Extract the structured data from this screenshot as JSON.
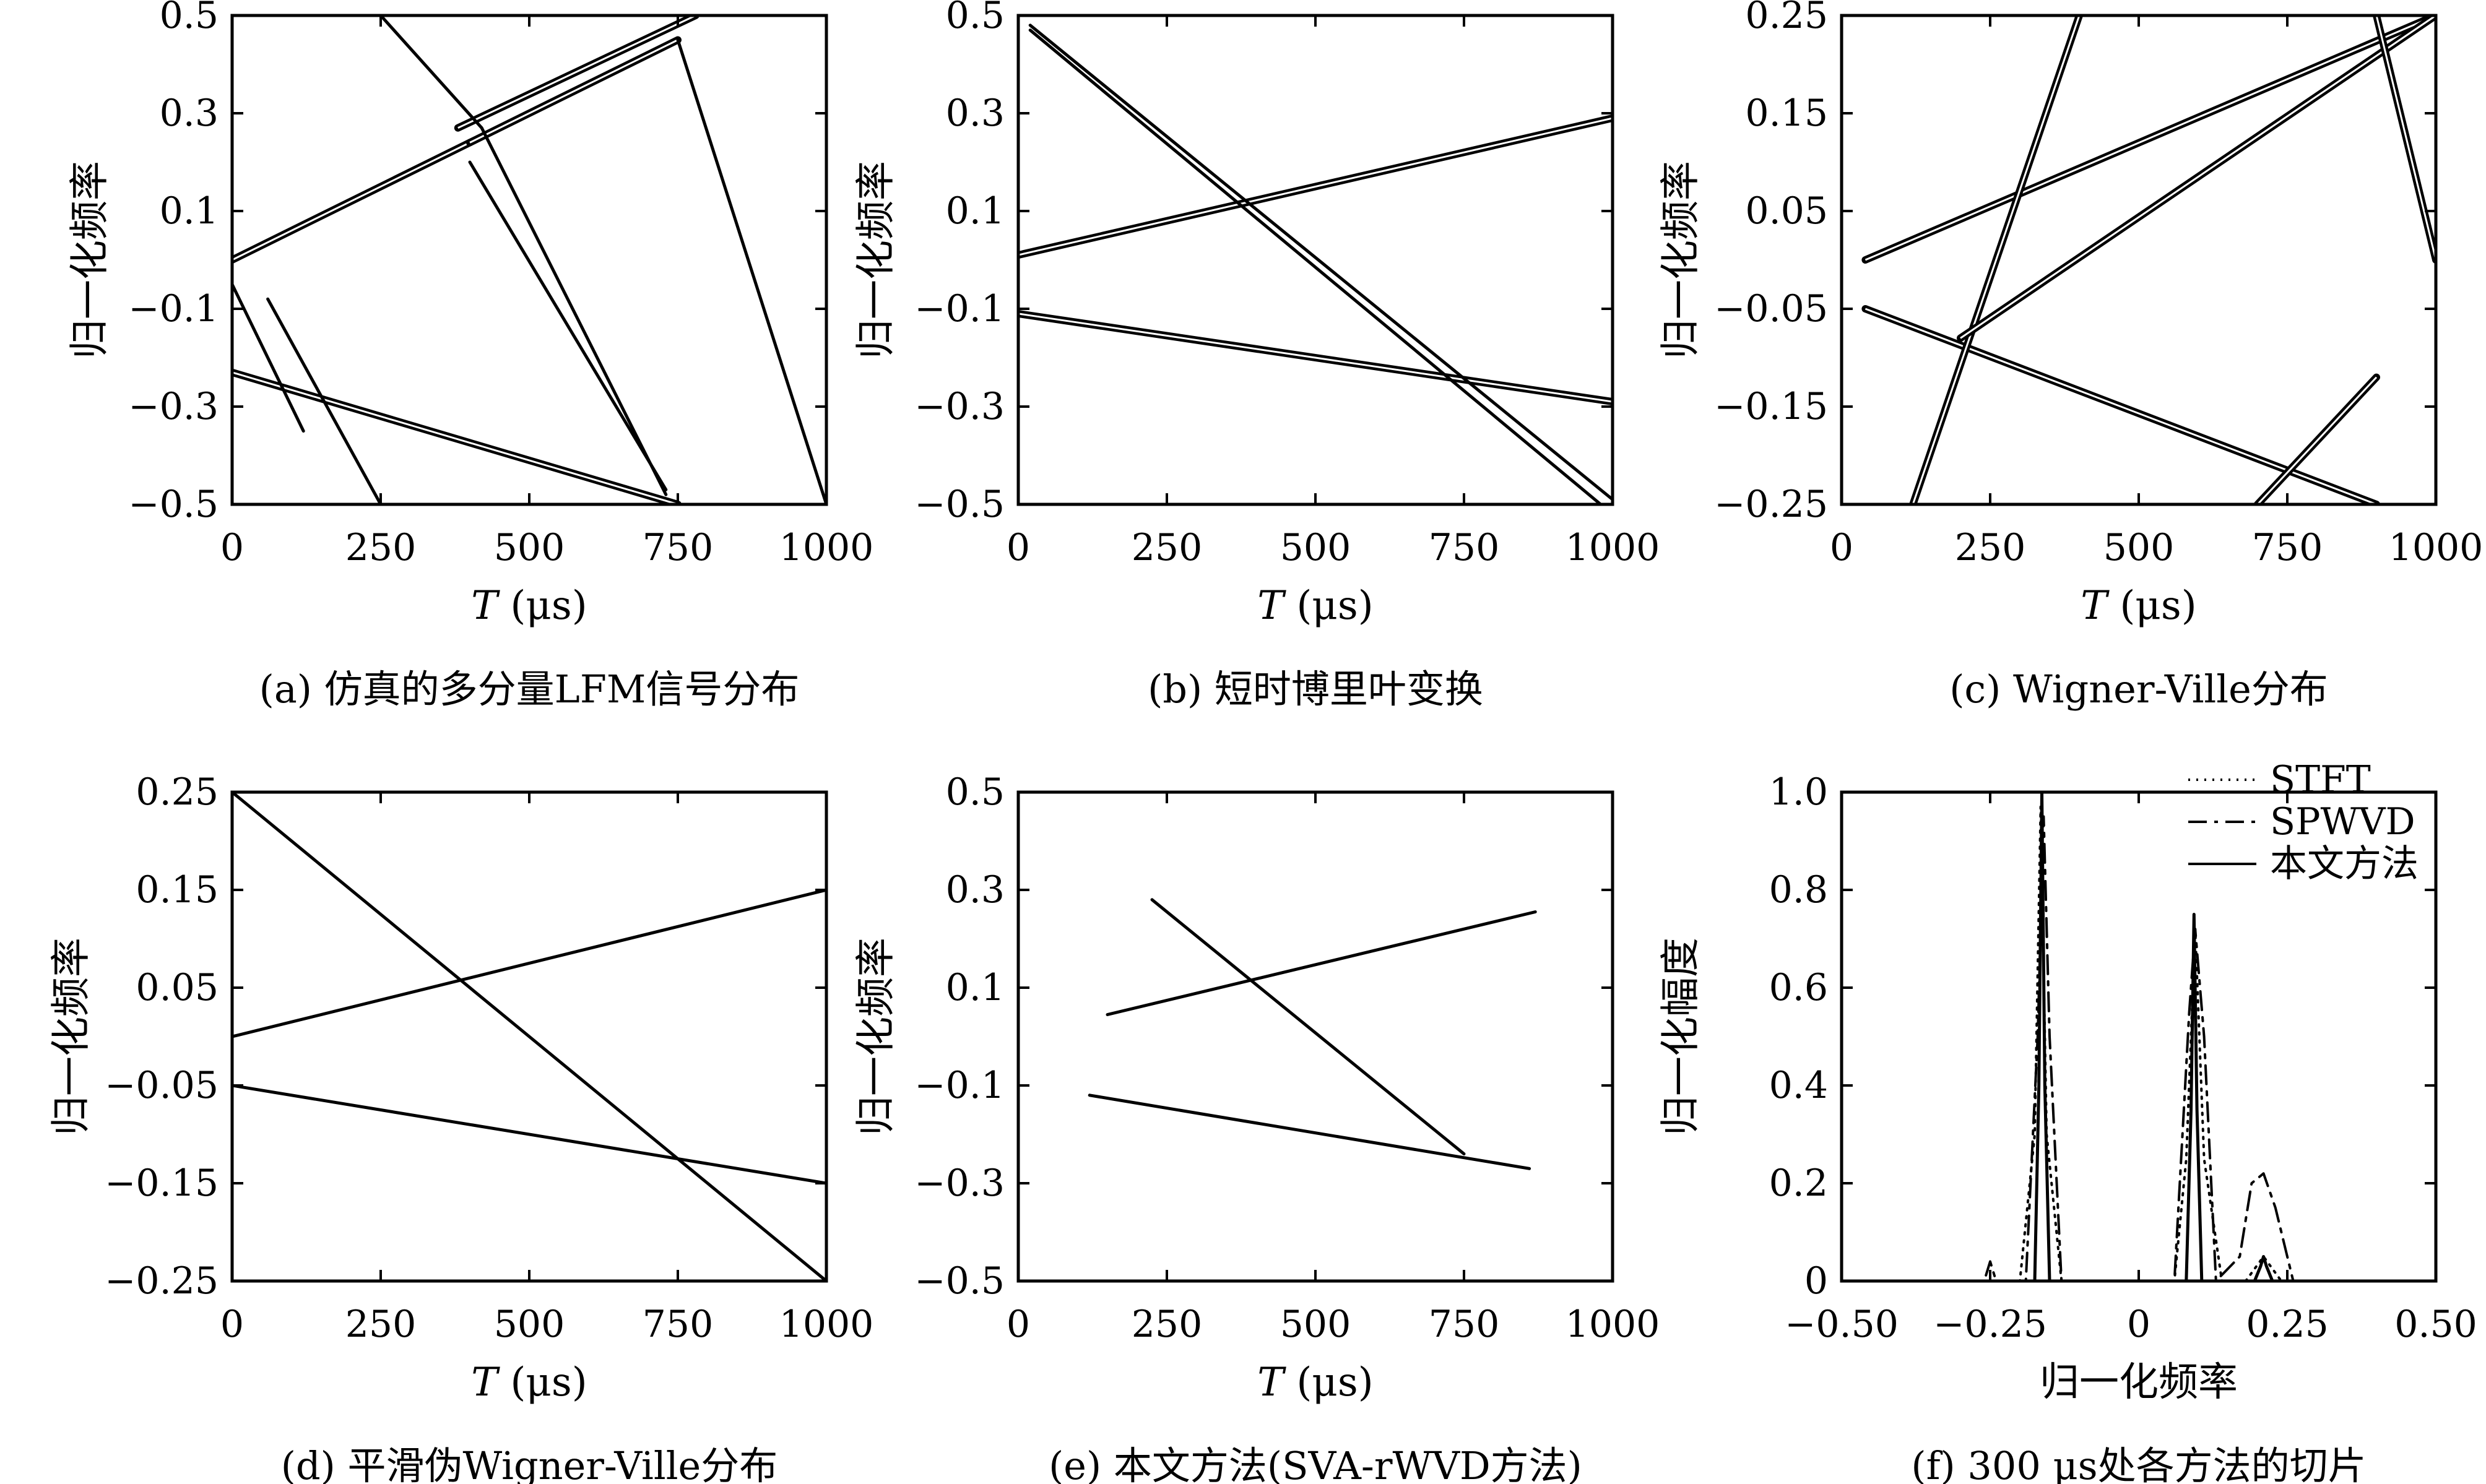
{
  "chart_data": [
    {
      "id": "a",
      "type": "line",
      "caption": "(a) 仿真的多分量LFM信号分布",
      "xlabel_var": "T",
      "xlabel_unit": " (μs)",
      "ylabel": "归一化频率",
      "xlim": [
        0,
        1000
      ],
      "ylim": [
        -0.5,
        0.5
      ],
      "xticks": [
        0,
        250,
        500,
        750,
        1000
      ],
      "yticks": [
        0.5,
        0.3,
        0.1,
        -0.1,
        -0.3,
        -0.5
      ],
      "ytick_labels": [
        "0.5",
        "0.3",
        "0.1",
        "−0.1",
        "−0.3",
        "−0.5"
      ],
      "series": [
        {
          "style": "thick",
          "x": [
            0,
            400
          ],
          "y": [
            0.0,
            0.24
          ]
        },
        {
          "style": "thick",
          "x": [
            400,
            750
          ],
          "y": [
            0.24,
            0.45
          ]
        },
        {
          "style": "thick",
          "x": [
            0,
            750
          ],
          "y": [
            -0.23,
            -0.5
          ]
        },
        {
          "style": "thick",
          "x": [
            380,
            780
          ],
          "y": [
            0.27,
            0.5
          ]
        },
        {
          "style": "thin",
          "x": [
            250,
            420
          ],
          "y": [
            0.5,
            0.27
          ]
        },
        {
          "style": "thin",
          "x": [
            420,
            730
          ],
          "y": [
            0.27,
            -0.48
          ]
        },
        {
          "style": "thin",
          "x": [
            60,
            250
          ],
          "y": [
            -0.08,
            -0.5
          ]
        },
        {
          "style": "thin",
          "x": [
            400,
            730
          ],
          "y": [
            0.2,
            -0.47
          ]
        },
        {
          "style": "thin",
          "x": [
            750,
            1000
          ],
          "y": [
            0.45,
            -0.5
          ]
        },
        {
          "style": "thin",
          "x": [
            0,
            120
          ],
          "y": [
            -0.05,
            -0.35
          ]
        }
      ]
    },
    {
      "id": "b",
      "type": "line",
      "caption": "(b) 短时博里叶变换",
      "xlabel_var": "T",
      "xlabel_unit": " (μs)",
      "ylabel": "归一化频率",
      "xlim": [
        0,
        1000
      ],
      "ylim": [
        -0.5,
        0.5
      ],
      "xticks": [
        0,
        250,
        500,
        750,
        1000
      ],
      "yticks": [
        0.5,
        0.3,
        0.1,
        -0.1,
        -0.3,
        -0.5
      ],
      "ytick_labels": [
        "0.5",
        "0.3",
        "0.1",
        "−0.1",
        "−0.3",
        "−0.5"
      ],
      "series": [
        {
          "style": "thick",
          "x": [
            0,
            1000
          ],
          "y": [
            0.01,
            0.29
          ]
        },
        {
          "style": "thick",
          "x": [
            0,
            1000
          ],
          "y": [
            -0.11,
            -0.29
          ]
        },
        {
          "style": "thin",
          "x": [
            20,
            1000
          ],
          "y": [
            0.48,
            -0.49
          ]
        },
        {
          "style": "thin",
          "x": [
            20,
            980
          ],
          "y": [
            0.47,
            -0.5
          ]
        }
      ]
    },
    {
      "id": "c",
      "type": "line",
      "caption": "(c) Wigner-Ville分布",
      "xlabel_var": "T",
      "xlabel_unit": " (μs)",
      "ylabel": "归一化频率",
      "xlim": [
        0,
        1000
      ],
      "ylim": [
        -0.25,
        0.25
      ],
      "xticks": [
        0,
        250,
        500,
        750,
        1000
      ],
      "yticks": [
        0.25,
        0.15,
        0.05,
        -0.05,
        -0.15,
        -0.25
      ],
      "ytick_labels": [
        "0.25",
        "0.15",
        "0.05",
        "−0.05",
        "−0.15",
        "−0.25"
      ],
      "series": [
        {
          "style": "thick",
          "x": [
            40,
            1000
          ],
          "y": [
            0.0,
            0.25
          ]
        },
        {
          "style": "thick",
          "x": [
            40,
            900
          ],
          "y": [
            -0.05,
            -0.25
          ]
        },
        {
          "style": "thick",
          "x": [
            120,
            400
          ],
          "y": [
            -0.25,
            0.25
          ]
        },
        {
          "style": "thick",
          "x": [
            200,
            1000
          ],
          "y": [
            -0.08,
            0.25
          ]
        },
        {
          "style": "thick",
          "x": [
            700,
            900
          ],
          "y": [
            -0.25,
            -0.12
          ]
        },
        {
          "style": "thick",
          "x": [
            900,
            1000
          ],
          "y": [
            0.25,
            -0.0
          ]
        }
      ]
    },
    {
      "id": "d",
      "type": "line",
      "caption": "(d) 平滑伪Wigner-Ville分布",
      "xlabel_var": "T",
      "xlabel_unit": " (μs)",
      "ylabel": "归一化频率",
      "xlim": [
        0,
        1000
      ],
      "ylim": [
        -0.25,
        0.25
      ],
      "xticks": [
        0,
        250,
        500,
        750,
        1000
      ],
      "yticks": [
        0.25,
        0.15,
        0.05,
        -0.05,
        -0.15,
        -0.25
      ],
      "ytick_labels": [
        "0.25",
        "0.15",
        "0.05",
        "−0.05",
        "−0.15",
        "−0.25"
      ],
      "series": [
        {
          "style": "thin",
          "x": [
            0,
            1000
          ],
          "y": [
            0.25,
            -0.25
          ]
        },
        {
          "style": "thin",
          "x": [
            0,
            1000
          ],
          "y": [
            0.0,
            0.15
          ]
        },
        {
          "style": "thin",
          "x": [
            0,
            1000
          ],
          "y": [
            -0.05,
            -0.15
          ]
        }
      ]
    },
    {
      "id": "e",
      "type": "line",
      "caption": "(e) 本文方法(SVA-rWVD方法)",
      "xlabel_var": "T",
      "xlabel_unit": " (μs)",
      "ylabel": "归一化频率",
      "xlim": [
        0,
        1000
      ],
      "ylim": [
        -0.5,
        0.5
      ],
      "xticks": [
        0,
        250,
        500,
        750,
        1000
      ],
      "yticks": [
        0.5,
        0.3,
        0.1,
        -0.1,
        -0.3,
        -0.5
      ],
      "ytick_labels": [
        "0.5",
        "0.3",
        "0.1",
        "−0.1",
        "−0.3",
        "−0.5"
      ],
      "series": [
        {
          "style": "thin",
          "x": [
            150,
            870
          ],
          "y": [
            0.045,
            0.255
          ]
        },
        {
          "style": "thin",
          "x": [
            120,
            860
          ],
          "y": [
            -0.12,
            -0.27
          ]
        },
        {
          "style": "thin",
          "x": [
            225,
            750
          ],
          "y": [
            0.28,
            -0.24
          ]
        }
      ]
    },
    {
      "id": "f",
      "type": "line",
      "caption": "(f) 300 μs处各方法的切片",
      "xlabel": "归一化频率",
      "ylabel": "归一化幅度",
      "xlim": [
        -0.5,
        0.5
      ],
      "ylim": [
        0,
        1.0
      ],
      "xticks": [
        -0.5,
        -0.25,
        0,
        0.25,
        0.5
      ],
      "xtick_labels": [
        "−0.50",
        "−0.25",
        "0",
        "0.25",
        "0.50"
      ],
      "yticks": [
        1.0,
        0.8,
        0.6,
        0.4,
        0.2,
        0
      ],
      "ytick_labels": [
        "1.0",
        "0.8",
        "0.6",
        "0.4",
        "0.2",
        "0"
      ],
      "legend_position": "top-right",
      "series": [
        {
          "name": "STFT",
          "dash": "dotted",
          "x": [
            -0.5,
            -0.2,
            -0.175,
            -0.165,
            -0.155,
            -0.13,
            0.06,
            0.08,
            0.095,
            0.11,
            0.14,
            0.18,
            0.21,
            0.24,
            0.5
          ],
          "y": [
            0,
            0,
            0.3,
            0.97,
            0.3,
            0,
            0,
            0.25,
            0.72,
            0.25,
            0,
            0,
            0.05,
            0,
            0
          ]
        },
        {
          "name": "SPWVD",
          "dash": "dashdot",
          "x": [
            -0.5,
            -0.26,
            -0.25,
            -0.24,
            -0.19,
            -0.17,
            -0.16,
            -0.15,
            -0.13,
            0.06,
            0.085,
            0.095,
            0.11,
            0.13,
            0.17,
            0.19,
            0.21,
            0.23,
            0.26,
            0.5
          ],
          "y": [
            0,
            0,
            0.04,
            0,
            0,
            0.5,
            0.95,
            0.5,
            0,
            0,
            0.55,
            0.72,
            0.5,
            0,
            0.05,
            0.2,
            0.22,
            0.15,
            0,
            0
          ]
        },
        {
          "name": "本文方法",
          "dash": "solid",
          "x": [
            -0.5,
            -0.175,
            -0.168,
            -0.163,
            -0.158,
            -0.15,
            0.08,
            0.088,
            0.093,
            0.098,
            0.106,
            0.195,
            0.205,
            0.21,
            0.215,
            0.225,
            0.5
          ],
          "y": [
            0,
            0,
            0.4,
            1.0,
            0.4,
            0,
            0,
            0.35,
            0.75,
            0.35,
            0,
            0,
            0.03,
            0.05,
            0.03,
            0,
            0
          ]
        }
      ]
    }
  ]
}
